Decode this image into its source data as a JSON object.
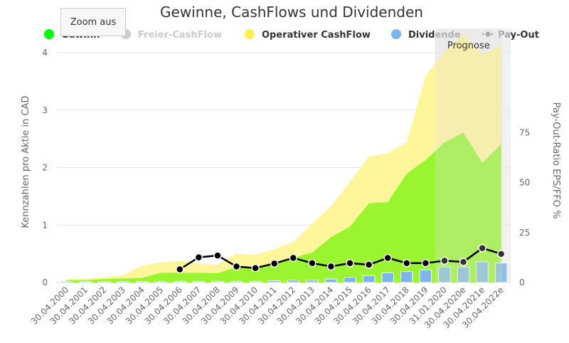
{
  "chart_data": {
    "type": "area",
    "title": "Gewinne, CashFlows und Dividenden",
    "zoom_button_label": "Zoom aus",
    "prognose_label": "Prognose",
    "categories": [
      "30.04.2000",
      "30.04.2001",
      "30.04.2002",
      "30.04.2003",
      "30.04.2004",
      "30.04.2005",
      "30.04.2006",
      "30.04.2007",
      "30.04.2008",
      "30.04.2009",
      "30.04.2010",
      "30.04.2011",
      "30.04.2012",
      "30.04.2013",
      "30.04.2014",
      "30.04.2015",
      "30.04.2016",
      "30.04.2017",
      "30.04.2018",
      "30.04.2019",
      "31.01.2020",
      "30.04.2020e",
      "30.04.2021e",
      "30.04.2022e"
    ],
    "forecast_start_index": 20,
    "y_left": {
      "label": "Kennzahlen pro Aktie in CAD",
      "min": 0,
      "max": 4,
      "ticks": [
        "0",
        "1",
        "2",
        "3",
        "4"
      ]
    },
    "y_right": {
      "label": "Pay-Out-Ratio EPS/FFO %",
      "min": 0,
      "max": 115,
      "ticks": [
        "0",
        "25",
        "50",
        "75"
      ]
    },
    "legend": [
      {
        "name": "Gewinn",
        "color": "#00ff00",
        "marker": "circle",
        "visible": true
      },
      {
        "name": "Freier-CashFlow",
        "color": "#cccccc",
        "marker": "circle",
        "visible": false
      },
      {
        "name": "Operativer CashFlow",
        "color": "#ffee55",
        "marker": "circle",
        "visible": true
      },
      {
        "name": "Dividende",
        "color": "#7cb5ec",
        "marker": "circle",
        "visible": true
      },
      {
        "name": "Pay-Out",
        "color": "#111111",
        "marker": "line-dot",
        "visible": true
      }
    ],
    "series": [
      {
        "name": "Operativer CashFlow",
        "type": "area",
        "axis": "left",
        "color": "#fff59a",
        "values": [
          0.06,
          0.07,
          0.09,
          0.13,
          0.29,
          0.35,
          0.38,
          0.33,
          0.31,
          0.5,
          0.48,
          0.58,
          0.7,
          1.02,
          1.33,
          1.75,
          2.19,
          2.25,
          2.44,
          3.59,
          4.01,
          4.32,
          3.97,
          4.12
        ]
      },
      {
        "name": "Gewinn",
        "type": "area",
        "axis": "left",
        "color": "#9af530",
        "values": [
          0.04,
          0.04,
          0.06,
          0.07,
          0.08,
          0.17,
          0.17,
          0.17,
          0.16,
          0.27,
          0.28,
          0.34,
          0.43,
          0.52,
          0.79,
          0.97,
          1.38,
          1.4,
          1.89,
          2.13,
          2.44,
          2.61,
          2.08,
          2.41
        ]
      },
      {
        "name": "Dividende",
        "type": "bar",
        "axis": "left",
        "color": "#7cb5ec",
        "values": [
          0,
          0,
          0,
          0,
          0,
          0,
          0.02,
          0.02,
          0.02,
          0.02,
          0.02,
          0.03,
          0.04,
          0.04,
          0.06,
          0.09,
          0.12,
          0.17,
          0.19,
          0.22,
          0.27,
          0.27,
          0.36,
          0.34
        ]
      },
      {
        "name": "Pay-Out",
        "type": "line",
        "axis": "right",
        "color": "#000000",
        "values": [
          null,
          null,
          null,
          null,
          null,
          null,
          6.6,
          12.6,
          13.5,
          8.0,
          7.2,
          9.5,
          12.3,
          9.7,
          8.0,
          9.7,
          8.9,
          12.3,
          9.7,
          9.7,
          10.9,
          10.3,
          17.2,
          14.3
        ]
      }
    ]
  }
}
